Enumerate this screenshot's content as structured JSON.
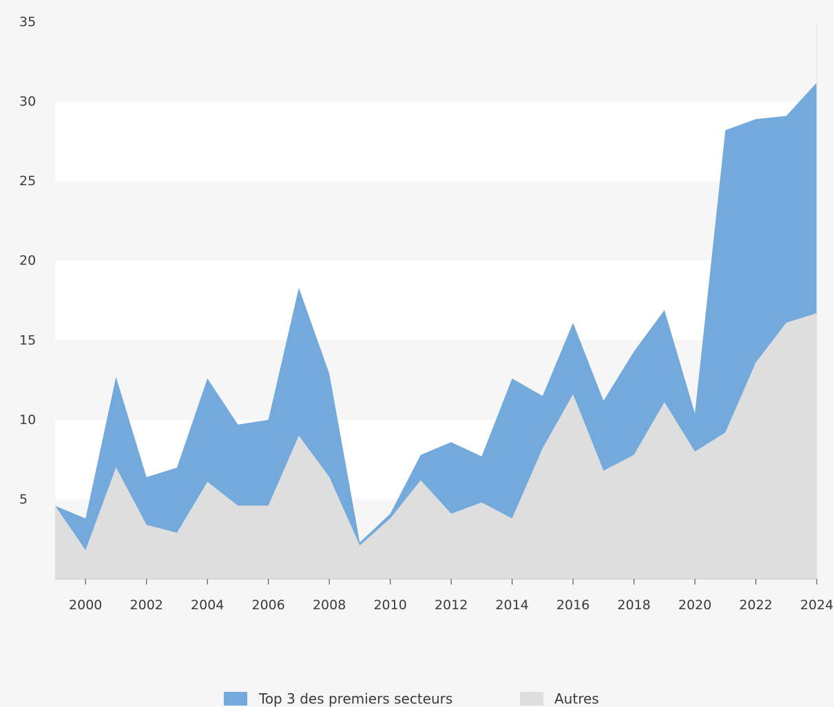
{
  "chart_data": {
    "type": "area",
    "stacked": true,
    "x": [
      1999,
      2000,
      2001,
      2002,
      2003,
      2004,
      2005,
      2006,
      2007,
      2008,
      2009,
      2010,
      2011,
      2012,
      2013,
      2014,
      2015,
      2016,
      2017,
      2018,
      2019,
      2020,
      2021,
      2022,
      2023,
      2024
    ],
    "x_tick_labels": [
      "2000",
      "2002",
      "2004",
      "2006",
      "2008",
      "2010",
      "2012",
      "2014",
      "2016",
      "2018",
      "2020",
      "2022",
      "2024"
    ],
    "y_tick_labels": [
      "5",
      "10",
      "15",
      "20",
      "25",
      "30",
      "35"
    ],
    "ylim": [
      0,
      35
    ],
    "grid": "alternating horizontal bands",
    "legend_position": "bottom-center",
    "series": [
      {
        "name": "Autres",
        "color": "#dedede",
        "values": [
          4.6,
          1.8,
          7.0,
          3.4,
          2.9,
          6.1,
          4.6,
          4.6,
          9.0,
          6.4,
          2.1,
          3.8,
          6.2,
          4.1,
          4.8,
          3.8,
          8.2,
          11.6,
          6.8,
          7.8,
          11.1,
          8.0,
          9.2,
          13.6,
          16.1,
          16.7
        ]
      },
      {
        "name": "Top 3 des premiers secteurs",
        "color": "#74a9dc",
        "values": [
          0.0,
          2.0,
          5.7,
          3.0,
          4.1,
          6.5,
          5.1,
          5.4,
          9.3,
          6.5,
          0.2,
          0.3,
          1.6,
          4.5,
          2.9,
          8.8,
          3.3,
          4.5,
          4.4,
          6.5,
          5.8,
          2.4,
          19.0,
          15.3,
          13.0,
          14.5
        ]
      }
    ],
    "legend": [
      {
        "label": "Top 3 des premiers secteurs",
        "color": "#74a9dc"
      },
      {
        "label": "Autres",
        "color": "#dedede"
      }
    ]
  },
  "colors": {
    "background": "#f6f6f6",
    "band": "#ffffff",
    "axis": "#cfcfcf",
    "text": "#3a3a3a"
  }
}
